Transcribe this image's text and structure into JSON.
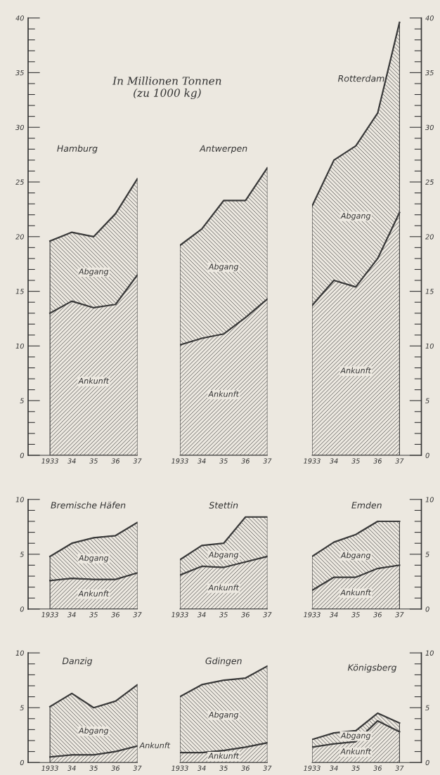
{
  "chart_data": [
    {
      "type": "area",
      "stacked": true,
      "title": "Hamburg",
      "annotations": [
        "In Millionen Tonnen\n(zu 1000 kg)"
      ],
      "x": [
        1933,
        1934,
        1935,
        1936,
        1937
      ],
      "xlim": [
        1932,
        1937
      ],
      "xticks": [
        1933,
        {
          "value": 1934,
          "label": "34"
        },
        {
          "value": 1935,
          "label": "35"
        },
        {
          "value": 1936,
          "label": "36"
        },
        {
          "value": 1937,
          "label": "37"
        }
      ],
      "ylim": [
        0,
        40
      ],
      "yticks": [
        0,
        {
          "value": 1,
          "label": null
        },
        {
          "value": 2,
          "label": null
        },
        {
          "value": 3,
          "label": null
        },
        {
          "value": 4,
          "label": null
        },
        5,
        {
          "value": 6,
          "label": null
        },
        {
          "value": 7,
          "label": null
        },
        {
          "value": 8,
          "label": null
        },
        {
          "value": 9,
          "label": null
        },
        10,
        {
          "value": 11,
          "label": null
        },
        {
          "value": 12,
          "label": null
        },
        {
          "value": 13,
          "label": null
        },
        {
          "value": 14,
          "label": null
        },
        15,
        {
          "value": 16,
          "label": null
        },
        {
          "value": 17,
          "label": null
        },
        {
          "value": 18,
          "label": null
        },
        {
          "value": 19,
          "label": null
        },
        20,
        {
          "value": 21,
          "label": null
        },
        {
          "value": 22,
          "label": null
        },
        {
          "value": 23,
          "label": null
        },
        {
          "value": 24,
          "label": null
        },
        25,
        {
          "value": 26,
          "label": null
        },
        {
          "value": 27,
          "label": null
        },
        {
          "value": 28,
          "label": null
        },
        {
          "value": 29,
          "label": null
        },
        30,
        {
          "value": 31,
          "label": null
        },
        {
          "value": 32,
          "label": null
        },
        {
          "value": 33,
          "label": null
        },
        {
          "value": 34,
          "label": null
        },
        35,
        {
          "value": 36,
          "label": null
        },
        {
          "value": 37,
          "label": null
        },
        {
          "value": 38,
          "label": null
        },
        {
          "value": 39,
          "label": null
        },
        40
      ],
      "series": [
        {
          "name": "Ankunft",
          "color": "#3a3a3a",
          "values": [
            13.0,
            14.1,
            13.5,
            13.8,
            16.5
          ]
        },
        {
          "name": "Abgang",
          "color": "#3a3a3a",
          "values": [
            6.6,
            6.3,
            6.5,
            8.3,
            8.8
          ]
        }
      ]
    },
    {
      "type": "area",
      "stacked": true,
      "title": "Antwerpen",
      "x": [
        1933,
        1934,
        1935,
        1936,
        1937
      ],
      "xlim": [
        1933,
        1937
      ],
      "xticks": [
        1933,
        {
          "value": 1934,
          "label": "34"
        },
        {
          "value": 1935,
          "label": "35"
        },
        {
          "value": 1936,
          "label": "36"
        },
        {
          "value": 1937,
          "label": "37"
        }
      ],
      "ylim": [
        0,
        40
      ],
      "tick_labels": "x",
      "series": [
        {
          "name": "Ankunft",
          "color": "#3a3a3a",
          "values": [
            10.1,
            10.7,
            11.1,
            12.6,
            14.3
          ]
        },
        {
          "name": "Abgang",
          "color": "#3a3a3a",
          "values": [
            9.1,
            10.0,
            12.2,
            10.7,
            12.0
          ]
        }
      ]
    },
    {
      "type": "area",
      "stacked": true,
      "title": "Rotterdam",
      "x": [
        1933,
        1934,
        1935,
        1936,
        1937
      ],
      "xlim": [
        1933,
        1938
      ],
      "xticks": [
        1933,
        {
          "value": 1934,
          "label": "34"
        },
        {
          "value": 1935,
          "label": "35"
        },
        {
          "value": 1936,
          "label": "36"
        },
        {
          "value": 1937,
          "label": "37"
        }
      ],
      "y2lim": [
        0,
        40
      ],
      "y2ticks": [
        0,
        {
          "value": 1,
          "label": null
        },
        {
          "value": 2,
          "label": null
        },
        {
          "value": 3,
          "label": null
        },
        {
          "value": 4,
          "label": null
        },
        5,
        {
          "value": 6,
          "label": null
        },
        {
          "value": 7,
          "label": null
        },
        {
          "value": 8,
          "label": null
        },
        {
          "value": 9,
          "label": null
        },
        10,
        {
          "value": 11,
          "label": null
        },
        {
          "value": 12,
          "label": null
        },
        {
          "value": 13,
          "label": null
        },
        {
          "value": 14,
          "label": null
        },
        15,
        {
          "value": 16,
          "label": null
        },
        {
          "value": 17,
          "label": null
        },
        {
          "value": 18,
          "label": null
        },
        {
          "value": 19,
          "label": null
        },
        20,
        {
          "value": 21,
          "label": null
        },
        {
          "value": 22,
          "label": null
        },
        {
          "value": 23,
          "label": null
        },
        {
          "value": 24,
          "label": null
        },
        25,
        {
          "value": 26,
          "label": null
        },
        {
          "value": 27,
          "label": null
        },
        {
          "value": 28,
          "label": null
        },
        {
          "value": 29,
          "label": null
        },
        30,
        {
          "value": 31,
          "label": null
        },
        {
          "value": 32,
          "label": null
        },
        {
          "value": 33,
          "label": null
        },
        {
          "value": 34,
          "label": null
        },
        35,
        {
          "value": 36,
          "label": null
        },
        {
          "value": 37,
          "label": null
        },
        {
          "value": 38,
          "label": null
        },
        {
          "value": 39,
          "label": null
        },
        40
      ],
      "series": [
        {
          "name": "Ankunft",
          "color": "#3a3a3a",
          "axis": "y2",
          "values": [
            13.7,
            16.0,
            15.4,
            18.0,
            22.2
          ]
        },
        {
          "name": "Abgang",
          "color": "#3a3a3a",
          "axis": "y2",
          "values": [
            9.1,
            11.0,
            12.9,
            13.3,
            17.4
          ]
        }
      ]
    },
    {
      "type": "area",
      "stacked": true,
      "title": "Bremische Häfen",
      "x": [
        1933,
        1934,
        1935,
        1936,
        1937
      ],
      "xlim": [
        1932,
        1937
      ],
      "xticks": [
        1933,
        {
          "value": 1934,
          "label": "34"
        },
        {
          "value": 1935,
          "label": "35"
        },
        {
          "value": 1936,
          "label": "36"
        },
        {
          "value": 1937,
          "label": "37"
        }
      ],
      "ylim": [
        0,
        10
      ],
      "yticks": [
        0,
        {
          "value": 1,
          "label": null
        },
        {
          "value": 2,
          "label": null
        },
        {
          "value": 3,
          "label": null
        },
        {
          "value": 4,
          "label": null
        },
        5,
        {
          "value": 6,
          "label": null
        },
        {
          "value": 7,
          "label": null
        },
        {
          "value": 8,
          "label": null
        },
        {
          "value": 9,
          "label": null
        },
        10
      ],
      "series": [
        {
          "name": "Ankunft",
          "color": "#3a3a3a",
          "values": [
            2.6,
            2.8,
            2.7,
            2.7,
            3.3
          ]
        },
        {
          "name": "Abgang",
          "color": "#3a3a3a",
          "values": [
            2.2,
            3.2,
            3.8,
            4.0,
            4.6
          ]
        }
      ]
    },
    {
      "type": "area",
      "stacked": true,
      "title": "Stettin",
      "x": [
        1933,
        1934,
        1935,
        1936,
        1937
      ],
      "xlim": [
        1933,
        1937
      ],
      "xticks": [
        1933,
        {
          "value": 1934,
          "label": "34"
        },
        {
          "value": 1935,
          "label": "35"
        },
        {
          "value": 1936,
          "label": "36"
        },
        {
          "value": 1937,
          "label": "37"
        }
      ],
      "ylim": [
        0,
        10
      ],
      "tick_labels": "x",
      "series": [
        {
          "name": "Ankunft",
          "color": "#3a3a3a",
          "values": [
            3.1,
            3.9,
            3.8,
            4.3,
            4.8
          ]
        },
        {
          "name": "Abgang",
          "color": "#3a3a3a",
          "values": [
            1.4,
            1.9,
            2.2,
            4.1,
            3.6
          ]
        }
      ]
    },
    {
      "type": "area",
      "stacked": true,
      "title": "Emden",
      "x": [
        1933,
        1934,
        1935,
        1936,
        1937
      ],
      "xlim": [
        1933,
        1938
      ],
      "xticks": [
        1933,
        {
          "value": 1934,
          "label": "34"
        },
        {
          "value": 1935,
          "label": "35"
        },
        {
          "value": 1936,
          "label": "36"
        },
        {
          "value": 1937,
          "label": "37"
        }
      ],
      "y2lim": [
        0,
        10
      ],
      "y2ticks": [
        0,
        {
          "value": 1,
          "label": null
        },
        {
          "value": 2,
          "label": null
        },
        {
          "value": 3,
          "label": null
        },
        {
          "value": 4,
          "label": null
        },
        5,
        {
          "value": 6,
          "label": null
        },
        {
          "value": 7,
          "label": null
        },
        {
          "value": 8,
          "label": null
        },
        {
          "value": 9,
          "label": null
        },
        10
      ],
      "series": [
        {
          "name": "Ankunft",
          "color": "#3a3a3a",
          "axis": "y2",
          "values": [
            1.7,
            2.9,
            2.9,
            3.7,
            4.0
          ]
        },
        {
          "name": "Abgang",
          "color": "#3a3a3a",
          "axis": "y2",
          "values": [
            3.1,
            3.2,
            3.9,
            4.3,
            4.0
          ]
        }
      ]
    },
    {
      "type": "area",
      "stacked": true,
      "title": "Danzig",
      "x": [
        1933,
        1934,
        1935,
        1936,
        1937
      ],
      "xlim": [
        1932,
        1937
      ],
      "xticks": [
        1933,
        {
          "value": 1934,
          "label": "34"
        },
        {
          "value": 1935,
          "label": "35"
        },
        {
          "value": 1936,
          "label": "36"
        },
        {
          "value": 1937,
          "label": "37"
        }
      ],
      "ylim": [
        0,
        10
      ],
      "yticks": [
        0,
        {
          "value": 1,
          "label": null
        },
        {
          "value": 2,
          "label": null
        },
        {
          "value": 3,
          "label": null
        },
        {
          "value": 4,
          "label": null
        },
        5,
        {
          "value": 6,
          "label": null
        },
        {
          "value": 7,
          "label": null
        },
        {
          "value": 8,
          "label": null
        },
        {
          "value": 9,
          "label": null
        },
        10
      ],
      "series": [
        {
          "name": "Ankunft",
          "color": "#3a3a3a",
          "values": [
            0.5,
            0.7,
            0.7,
            1.0,
            1.5
          ]
        },
        {
          "name": "Abgang",
          "color": "#3a3a3a",
          "values": [
            4.6,
            5.6,
            4.3,
            4.6,
            5.6
          ]
        }
      ]
    },
    {
      "type": "area",
      "stacked": true,
      "title": "Gdingen",
      "x": [
        1933,
        1934,
        1935,
        1936,
        1937
      ],
      "xlim": [
        1933,
        1937
      ],
      "xticks": [
        1933,
        {
          "value": 1934,
          "label": "34"
        },
        {
          "value": 1935,
          "label": "35"
        },
        {
          "value": 1936,
          "label": "36"
        },
        {
          "value": 1937,
          "label": "37"
        }
      ],
      "ylim": [
        0,
        10
      ],
      "tick_labels": "x",
      "series": [
        {
          "name": "Ankunft",
          "color": "#3a3a3a",
          "values": [
            0.9,
            0.9,
            1.1,
            1.4,
            1.8
          ]
        },
        {
          "name": "Abgang",
          "color": "#3a3a3a",
          "values": [
            5.1,
            6.2,
            6.4,
            6.3,
            7.0
          ]
        }
      ]
    },
    {
      "type": "area",
      "stacked": true,
      "title": "Königsberg",
      "x": [
        1933,
        1934,
        1935,
        1936,
        1937
      ],
      "xlim": [
        1933,
        1938
      ],
      "xticks": [
        1933,
        {
          "value": 1934,
          "label": "34"
        },
        {
          "value": 1935,
          "label": "35"
        },
        {
          "value": 1936,
          "label": "36"
        },
        {
          "value": 1937,
          "label": "37"
        }
      ],
      "y2lim": [
        0,
        10
      ],
      "y2ticks": [
        0,
        {
          "value": 1,
          "label": null
        },
        {
          "value": 2,
          "label": null
        },
        {
          "value": 3,
          "label": null
        },
        {
          "value": 4,
          "label": null
        },
        5,
        {
          "value": 6,
          "label": null
        },
        {
          "value": 7,
          "label": null
        },
        {
          "value": 8,
          "label": null
        },
        {
          "value": 9,
          "label": null
        },
        10
      ],
      "series": [
        {
          "name": "Ankunft",
          "color": "#3a3a3a",
          "axis": "y2",
          "values": [
            1.4,
            1.7,
            1.9,
            3.8,
            2.8
          ]
        },
        {
          "name": "Abgang",
          "color": "#3a3a3a",
          "axis": "y2",
          "values": [
            0.7,
            1.0,
            1.0,
            0.7,
            0.8
          ]
        }
      ]
    }
  ]
}
